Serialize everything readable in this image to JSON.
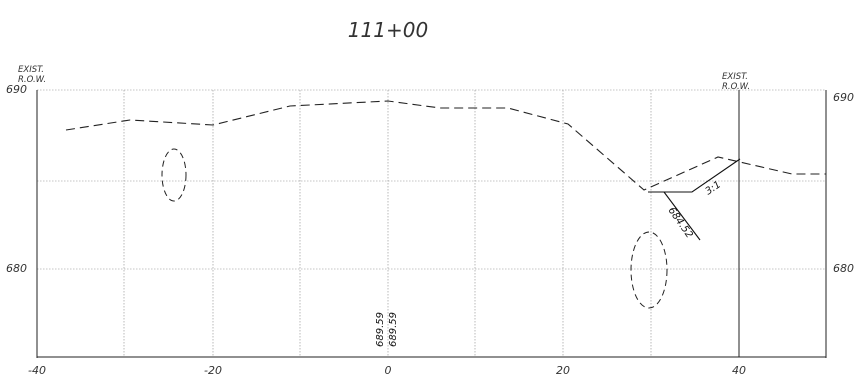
{
  "title": "111+00",
  "left_label": [
    "EXIST.",
    "R.O.W."
  ],
  "right_label": [
    "EXIST.",
    "R.O.W."
  ],
  "x_ticks": [
    "-40",
    "-20",
    "0",
    "20",
    "40"
  ],
  "y_ticks_left": [
    "690",
    "680"
  ],
  "y_ticks_right": [
    "690",
    "680"
  ],
  "center_values": [
    "689.59",
    "689.59"
  ],
  "slope_label": "3:1",
  "elevation_label": "684.52",
  "colors": {
    "line": "#222222",
    "grid": "#8a8a8a",
    "text": "#333333"
  }
}
